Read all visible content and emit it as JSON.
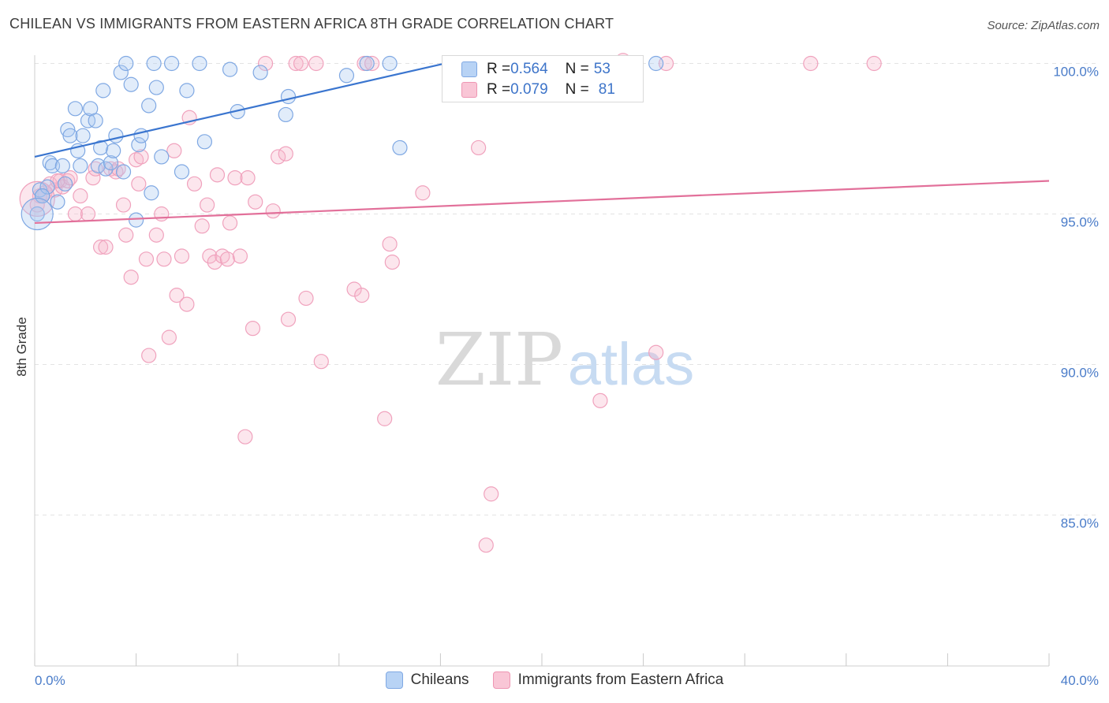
{
  "title": "CHILEAN VS IMMIGRANTS FROM EASTERN AFRICA 8TH GRADE CORRELATION CHART",
  "source": "Source: ZipAtlas.com",
  "watermark": {
    "zip": "ZIP",
    "atlas": "atlas"
  },
  "stats": [
    {
      "r_label": "R = ",
      "r_value": "0.564",
      "n_label": "N = ",
      "n_value": "53",
      "color": "#5b8fdc"
    },
    {
      "r_label": "R = ",
      "r_value": "0.079",
      "n_label": "N = ",
      "n_value": "81",
      "color": "#e77fa2"
    }
  ],
  "legend": [
    {
      "label": "Chileans",
      "color": "#5b8fdc"
    },
    {
      "label": "Immigrants from Eastern Africa",
      "color": "#e77fa2"
    }
  ],
  "chart_data": {
    "type": "scatter",
    "title": "CHILEAN VS IMMIGRANTS FROM EASTERN AFRICA 8TH GRADE CORRELATION CHART",
    "xlabel": "",
    "ylabel": "8th Grade",
    "xlim": [
      0,
      40
    ],
    "ylim": [
      80,
      100.5
    ],
    "x_tick_labels": [
      "0.0%",
      "40.0%"
    ],
    "y_ticks": [
      85,
      90,
      95,
      100
    ],
    "y_tick_labels": [
      "85.0%",
      "90.0%",
      "95.0%",
      "100.0%"
    ],
    "grid": true,
    "legend_position": "bottom",
    "series": [
      {
        "name": "Chileans",
        "color": "#5b8fdc",
        "trend": {
          "x": [
            0,
            16.7
          ],
          "y": [
            96.9,
            100.1
          ]
        },
        "points": [
          [
            0.1,
            95.0
          ],
          [
            0.2,
            95.8
          ],
          [
            0.3,
            95.6
          ],
          [
            0.5,
            95.9
          ],
          [
            0.6,
            96.7
          ],
          [
            0.7,
            96.6
          ],
          [
            0.9,
            95.4
          ],
          [
            1.1,
            96.6
          ],
          [
            1.2,
            96.0
          ],
          [
            1.3,
            97.8
          ],
          [
            1.4,
            97.6
          ],
          [
            1.6,
            98.5
          ],
          [
            1.7,
            97.1
          ],
          [
            1.8,
            96.6
          ],
          [
            1.9,
            97.6
          ],
          [
            2.1,
            98.1
          ],
          [
            2.2,
            98.5
          ],
          [
            2.4,
            98.1
          ],
          [
            2.5,
            96.6
          ],
          [
            2.6,
            97.2
          ],
          [
            2.7,
            99.1
          ],
          [
            2.8,
            96.5
          ],
          [
            3.0,
            96.7
          ],
          [
            3.1,
            97.1
          ],
          [
            3.2,
            97.6
          ],
          [
            3.4,
            99.7
          ],
          [
            3.5,
            96.4
          ],
          [
            3.6,
            100.0
          ],
          [
            3.8,
            99.3
          ],
          [
            4.0,
            94.8
          ],
          [
            4.1,
            97.3
          ],
          [
            4.2,
            97.6
          ],
          [
            4.5,
            98.6
          ],
          [
            4.6,
            95.7
          ],
          [
            4.7,
            100.0
          ],
          [
            4.8,
            99.2
          ],
          [
            5.0,
            96.9
          ],
          [
            5.4,
            100.0
          ],
          [
            6.0,
            99.1
          ],
          [
            5.8,
            96.4
          ],
          [
            6.7,
            97.4
          ],
          [
            6.5,
            100.0
          ],
          [
            7.7,
            99.8
          ],
          [
            8.0,
            98.4
          ],
          [
            8.9,
            99.7
          ],
          [
            9.9,
            98.3
          ],
          [
            10.0,
            98.9
          ],
          [
            12.3,
            99.6
          ],
          [
            13.1,
            100.0
          ],
          [
            14.0,
            100.0
          ],
          [
            14.4,
            97.2
          ],
          [
            24.5,
            100.0
          ],
          [
            0.3,
            95.6
          ]
        ]
      },
      {
        "name": "Immigrants from Eastern Africa",
        "color": "#e77fa2",
        "trend": {
          "x": [
            0,
            40
          ],
          "y": [
            94.7,
            96.1
          ]
        },
        "points": [
          [
            0.2,
            95.6
          ],
          [
            0.4,
            95.7
          ],
          [
            0.6,
            96.0
          ],
          [
            0.8,
            95.8
          ],
          [
            1.0,
            96.1
          ],
          [
            1.1,
            95.9
          ],
          [
            1.3,
            96.1
          ],
          [
            1.4,
            96.2
          ],
          [
            1.6,
            95.0
          ],
          [
            1.8,
            95.6
          ],
          [
            2.1,
            95.0
          ],
          [
            2.3,
            96.2
          ],
          [
            2.4,
            96.5
          ],
          [
            2.6,
            93.9
          ],
          [
            2.8,
            93.9
          ],
          [
            3.0,
            96.5
          ],
          [
            3.2,
            96.4
          ],
          [
            3.3,
            96.5
          ],
          [
            3.5,
            95.3
          ],
          [
            3.6,
            94.3
          ],
          [
            3.8,
            92.9
          ],
          [
            4.0,
            96.8
          ],
          [
            4.1,
            96.0
          ],
          [
            4.2,
            96.9
          ],
          [
            4.4,
            93.5
          ],
          [
            4.5,
            90.3
          ],
          [
            4.8,
            94.3
          ],
          [
            5.0,
            95.0
          ],
          [
            5.1,
            93.5
          ],
          [
            5.3,
            90.9
          ],
          [
            5.5,
            97.1
          ],
          [
            5.6,
            92.3
          ],
          [
            5.8,
            93.6
          ],
          [
            6.0,
            92.0
          ],
          [
            6.1,
            98.2
          ],
          [
            6.3,
            96.0
          ],
          [
            6.6,
            94.6
          ],
          [
            6.8,
            95.3
          ],
          [
            6.9,
            93.6
          ],
          [
            7.1,
            93.4
          ],
          [
            7.2,
            96.3
          ],
          [
            7.4,
            93.6
          ],
          [
            7.6,
            93.5
          ],
          [
            7.7,
            94.7
          ],
          [
            7.9,
            96.2
          ],
          [
            8.1,
            93.6
          ],
          [
            8.3,
            87.6
          ],
          [
            8.4,
            96.2
          ],
          [
            8.6,
            91.2
          ],
          [
            8.7,
            95.4
          ],
          [
            9.1,
            100.0
          ],
          [
            9.4,
            95.1
          ],
          [
            9.6,
            96.9
          ],
          [
            9.9,
            97.0
          ],
          [
            10.0,
            91.5
          ],
          [
            10.3,
            100.0
          ],
          [
            10.5,
            100.0
          ],
          [
            10.7,
            92.2
          ],
          [
            11.1,
            100.0
          ],
          [
            11.3,
            90.1
          ],
          [
            12.6,
            92.5
          ],
          [
            12.9,
            92.3
          ],
          [
            13.0,
            100.0
          ],
          [
            13.3,
            100.0
          ],
          [
            13.8,
            88.2
          ],
          [
            14.0,
            94.0
          ],
          [
            14.1,
            93.4
          ],
          [
            15.3,
            95.7
          ],
          [
            17.0,
            100.0
          ],
          [
            17.5,
            97.2
          ],
          [
            17.8,
            84.0
          ],
          [
            18.0,
            85.7
          ],
          [
            22.3,
            88.8
          ],
          [
            23.0,
            100.0
          ],
          [
            24.5,
            90.4
          ],
          [
            24.9,
            100.0
          ],
          [
            30.6,
            100.0
          ],
          [
            33.1,
            100.0
          ],
          [
            0.1,
            95.3
          ],
          [
            23.2,
            100.1
          ],
          [
            0.9,
            96.1
          ]
        ]
      }
    ]
  }
}
